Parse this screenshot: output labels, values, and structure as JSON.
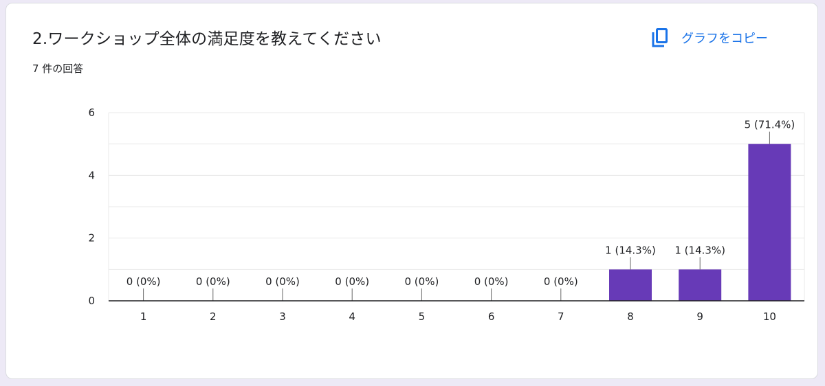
{
  "header": {
    "title": "2.ワークショップ全体の満足度を教えてください",
    "responses": "7 件の回答",
    "copy_label": "グラフをコピー",
    "copy_icon": "copy-icon"
  },
  "colors": {
    "bar": "#673ab7",
    "accent": "#1a73e8",
    "grid": "#e8e8e8",
    "axis": "#202124"
  },
  "chart_data": {
    "type": "bar",
    "categories": [
      "1",
      "2",
      "3",
      "4",
      "5",
      "6",
      "7",
      "8",
      "9",
      "10"
    ],
    "values": [
      0,
      0,
      0,
      0,
      0,
      0,
      0,
      1,
      1,
      5
    ],
    "data_labels": [
      "0 (0%)",
      "0 (0%)",
      "0 (0%)",
      "0 (0%)",
      "0 (0%)",
      "0 (0%)",
      "0 (0%)",
      "1 (14.3%)",
      "1 (14.3%)",
      "5 (71.4%)"
    ],
    "yticks": [
      0,
      2,
      4,
      6
    ],
    "ylim": [
      0,
      6
    ],
    "grid": true,
    "legend": "none"
  }
}
